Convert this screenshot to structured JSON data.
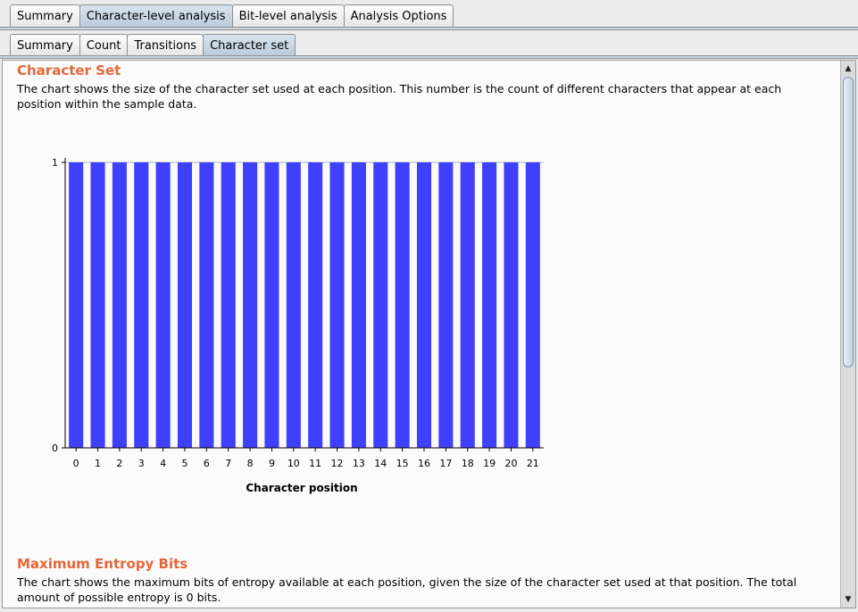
{
  "top_tabs": [
    {
      "label": "Summary",
      "active": false
    },
    {
      "label": "Character-level analysis",
      "active": true
    },
    {
      "label": "Bit-level analysis",
      "active": false
    },
    {
      "label": "Analysis Options",
      "active": false
    }
  ],
  "sub_tabs": [
    {
      "label": "Summary",
      "active": false
    },
    {
      "label": "Count",
      "active": false
    },
    {
      "label": "Transitions",
      "active": false
    },
    {
      "label": "Character set",
      "active": true
    }
  ],
  "section1": {
    "title": "Character Set",
    "description": "The chart shows the size of the character set used at each position. This number is the count of different characters that appear at each position within the sample data."
  },
  "section2": {
    "title": "Maximum Entropy Bits",
    "description": "The chart shows the maximum bits of entropy available at each position, given the size of the character set used at that position. The total amount of possible entropy is 0 bits."
  },
  "chart_data": {
    "type": "bar",
    "categories": [
      "0",
      "1",
      "2",
      "3",
      "4",
      "5",
      "6",
      "7",
      "8",
      "9",
      "10",
      "11",
      "12",
      "13",
      "14",
      "15",
      "16",
      "17",
      "18",
      "19",
      "20",
      "21"
    ],
    "values": [
      1,
      1,
      1,
      1,
      1,
      1,
      1,
      1,
      1,
      1,
      1,
      1,
      1,
      1,
      1,
      1,
      1,
      1,
      1,
      1,
      1,
      1
    ],
    "xlabel": "Character position",
    "ylabel": "",
    "ylim": [
      0,
      1
    ],
    "yticks": [
      "0",
      "1"
    ],
    "bar_color": "#3f3ffe",
    "grid": false
  },
  "scrollbar": {
    "up_icon": "arrow-up-icon",
    "down_icon": "arrow-down-icon"
  }
}
